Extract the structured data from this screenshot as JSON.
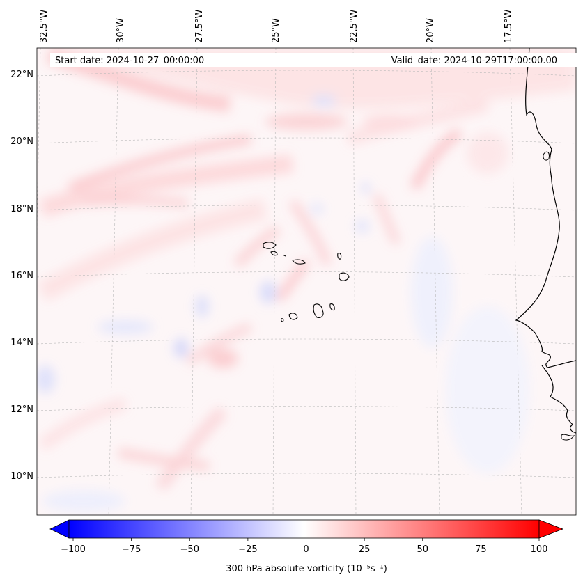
{
  "map": {
    "start_date": "Start date: 2024-10-27_00:00:00",
    "valid_date": "Valid_date: 2024-10-29T17:00:00.00",
    "lon_labels": [
      "32.5°W",
      "30°W",
      "27.5°W",
      "25°W",
      "22.5°W",
      "20°W",
      "17.5°W"
    ],
    "lat_labels": [
      "22°N",
      "20°N",
      "18°N",
      "16°N",
      "14°N",
      "12°N",
      "10°N"
    ],
    "coastline_color": "#000000",
    "gridlines": true
  },
  "colorbar": {
    "label": "300 hPa absolute vorticity (10⁻⁵s⁻¹)",
    "ticks": [
      "−100",
      "−75",
      "−50",
      "−25",
      "0",
      "25",
      "50",
      "75",
      "100"
    ],
    "range": [
      -100,
      100
    ],
    "colormap": "bwr",
    "extend": "both"
  }
}
